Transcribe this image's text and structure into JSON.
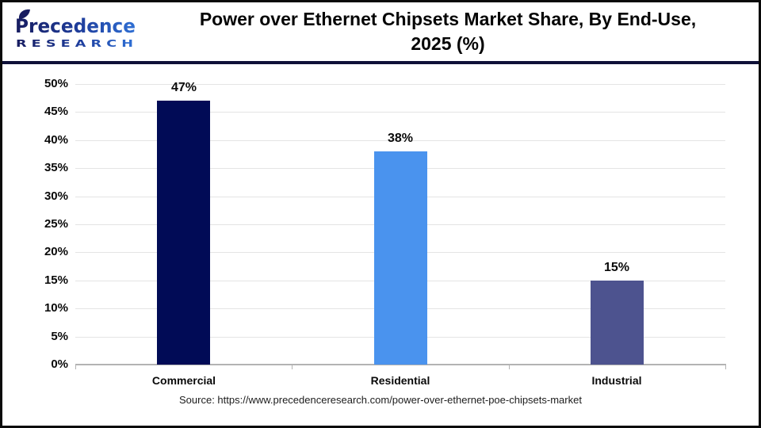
{
  "header": {
    "logo": {
      "name": "Precedence",
      "subtitle": "R E S E A R C H"
    },
    "title_line1": "Power over Ethernet Chipsets Market Share, By End-Use,",
    "title_line2": "2025 (%)"
  },
  "chart_data": {
    "type": "bar",
    "title": "Power over Ethernet Chipsets Market Share, By End-Use, 2025 (%)",
    "categories": [
      "Commercial",
      "Residential",
      "Industrial"
    ],
    "values": [
      47,
      38,
      15
    ],
    "value_labels": [
      "47%",
      "38%",
      "15%"
    ],
    "bar_colors": [
      "#010b56",
      "#4a93ee",
      "#4d538f"
    ],
    "xlabel": "",
    "ylabel": "",
    "ylim": [
      0,
      50
    ],
    "ytick_step": 5,
    "ytick_labels": [
      "0%",
      "5%",
      "10%",
      "15%",
      "20%",
      "25%",
      "30%",
      "35%",
      "40%",
      "45%",
      "50%"
    ],
    "grid": true,
    "legend_position": "none"
  },
  "footer": {
    "source": "Source: https://www.precedenceresearch.com/power-over-ethernet-poe-chipsets-market"
  },
  "colors": {
    "divider_navy": "#0e1038",
    "logo_gradient_start": "#171c60",
    "logo_gradient_end": "#2f6fd4",
    "gridline": "#e4e4e4",
    "axis": "#b3b3b3"
  }
}
